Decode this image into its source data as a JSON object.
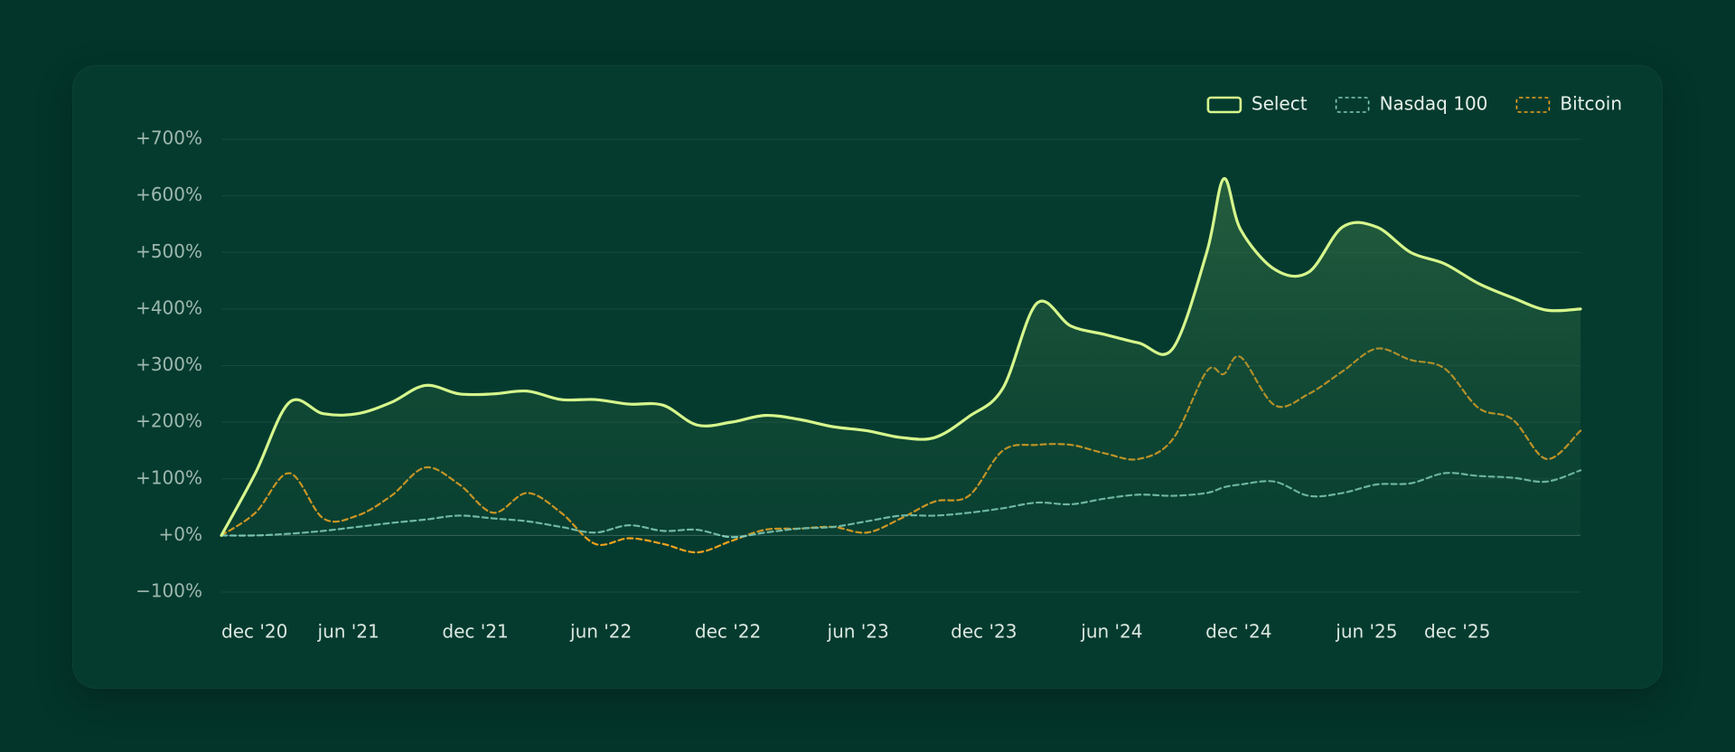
{
  "chart_data": {
    "type": "line",
    "x": [
      0,
      3,
      6,
      9,
      12,
      15,
      18,
      21,
      24,
      27,
      30,
      33,
      36,
      39,
      42,
      45,
      48,
      51,
      54,
      57,
      60,
      63,
      66,
      69,
      72,
      75,
      78,
      81,
      84,
      87,
      88.5,
      90,
      93,
      96,
      99,
      102,
      105,
      108,
      111,
      114,
      117,
      120
    ],
    "xlim": [
      0,
      120
    ],
    "xticks": [
      {
        "value": 0,
        "label": "dec '20"
      },
      {
        "value": 8.5,
        "label": "jun '21"
      },
      {
        "value": 19.5,
        "label": "dec '21"
      },
      {
        "value": 30.8,
        "label": "jun '22"
      },
      {
        "value": 41.8,
        "label": "dec '22"
      },
      {
        "value": 53.5,
        "label": "jun '23"
      },
      {
        "value": 64.4,
        "label": "dec '23"
      },
      {
        "value": 75.9,
        "label": "jun '24"
      },
      {
        "value": 86.9,
        "label": "dec '24"
      },
      {
        "value": 98.4,
        "label": "jun '25"
      },
      {
        "value": 106.2,
        "label": "dec '25"
      }
    ],
    "ylim": [
      -100,
      700
    ],
    "yticks": [
      {
        "value": -100,
        "label": "−100%"
      },
      {
        "value": 0,
        "label": "+0%"
      },
      {
        "value": 100,
        "label": "+100%"
      },
      {
        "value": 200,
        "label": "+200%"
      },
      {
        "value": 300,
        "label": "+300%"
      },
      {
        "value": 400,
        "label": "+400%"
      },
      {
        "value": 500,
        "label": "+500%"
      },
      {
        "value": 600,
        "label": "+600%"
      },
      {
        "value": 700,
        "label": "+700%"
      }
    ],
    "grid": true,
    "legend": "top-right",
    "series": [
      {
        "name": "Select",
        "color": "#d6f78c",
        "dash": false,
        "area": true,
        "values": [
          0,
          110,
          235,
          215,
          215,
          235,
          265,
          250,
          250,
          255,
          240,
          240,
          232,
          230,
          195,
          200,
          212,
          205,
          192,
          185,
          173,
          173,
          210,
          260,
          410,
          370,
          355,
          340,
          330,
          500,
          630,
          540,
          470,
          465,
          545,
          545,
          500,
          480,
          445,
          420,
          398,
          400
        ]
      },
      {
        "name": "Nasdaq 100",
        "color": "#80c9b9",
        "dash": true,
        "area": false,
        "values": [
          0,
          0,
          3,
          8,
          15,
          22,
          28,
          35,
          30,
          25,
          15,
          5,
          18,
          8,
          10,
          -3,
          5,
          12,
          15,
          25,
          35,
          35,
          40,
          48,
          58,
          55,
          65,
          72,
          70,
          75,
          85,
          90,
          95,
          70,
          75,
          90,
          92,
          110,
          105,
          102,
          95,
          115
        ]
      },
      {
        "name": "Bitcoin",
        "color": "#f0a21e",
        "dash": true,
        "area": false,
        "values": [
          0,
          40,
          110,
          30,
          35,
          70,
          120,
          90,
          40,
          75,
          40,
          -15,
          -5,
          -15,
          -30,
          -10,
          10,
          12,
          15,
          5,
          30,
          60,
          70,
          150,
          160,
          160,
          145,
          135,
          170,
          290,
          285,
          315,
          230,
          250,
          290,
          330,
          310,
          295,
          225,
          205,
          135,
          185
        ]
      }
    ]
  }
}
